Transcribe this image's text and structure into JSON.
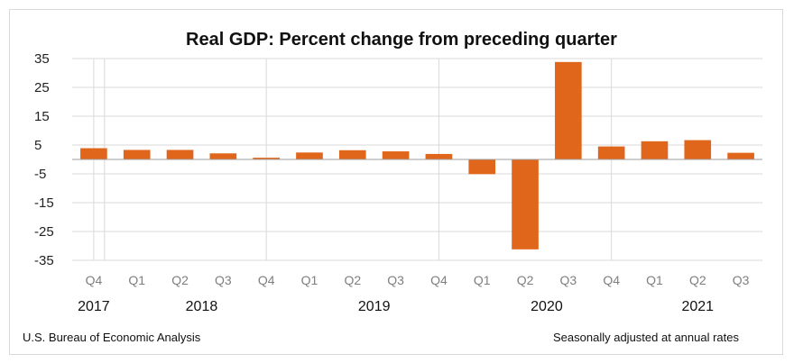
{
  "chart_data": {
    "type": "bar",
    "title": "Real GDP:  Percent change from preceding quarter",
    "categories": [
      "Q4",
      "Q1",
      "Q2",
      "Q3",
      "Q4",
      "Q1",
      "Q2",
      "Q3",
      "Q4",
      "Q1",
      "Q2",
      "Q3",
      "Q4",
      "Q1",
      "Q2",
      "Q3"
    ],
    "years": [
      {
        "label": "2017",
        "from": 0,
        "to": 0
      },
      {
        "label": "2018",
        "from": 1,
        "to": 4
      },
      {
        "label": "2019",
        "from": 5,
        "to": 8
      },
      {
        "label": "2020",
        "from": 9,
        "to": 12
      },
      {
        "label": "2021",
        "from": 13,
        "to": 15
      }
    ],
    "values": [
      3.9,
      3.3,
      3.3,
      2.1,
      0.6,
      2.4,
      3.2,
      2.8,
      1.9,
      -5.1,
      -31.2,
      33.8,
      4.5,
      6.3,
      6.7,
      2.3
    ],
    "ylim": [
      -35,
      35
    ],
    "yticks": [
      35,
      25,
      15,
      5,
      -5,
      -15,
      -25,
      -35
    ],
    "grid": true,
    "bar_color": "#e0661c",
    "source": "U.S. Bureau of Economic Analysis",
    "note": "Seasonally adjusted at annual rates"
  }
}
